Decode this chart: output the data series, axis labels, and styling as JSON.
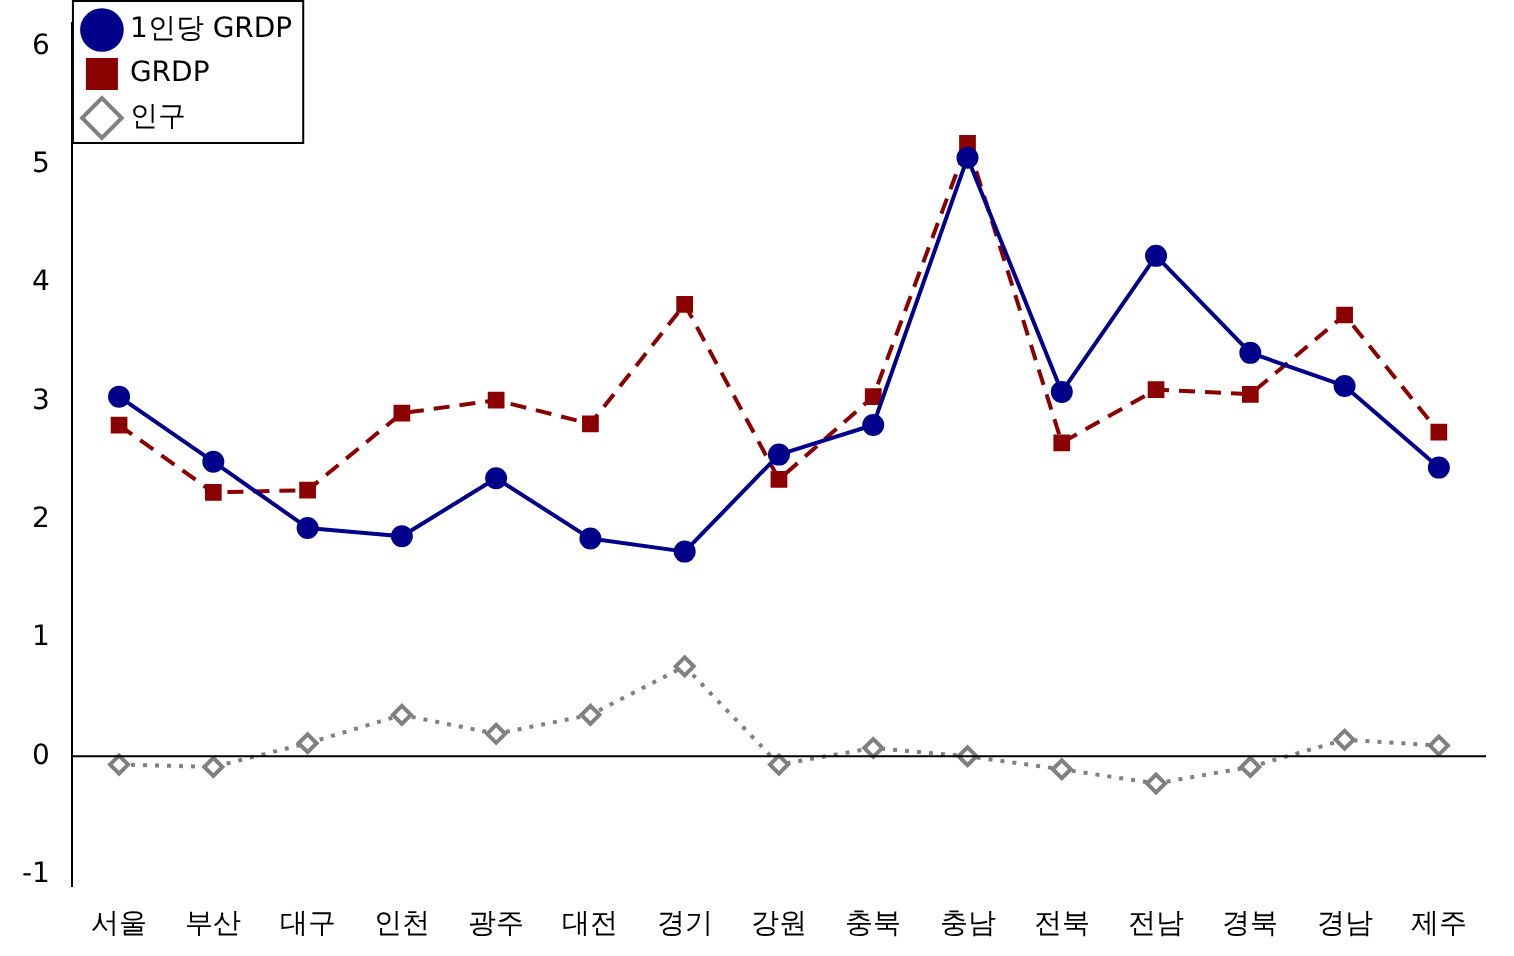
{
  "chart_data": {
    "type": "line",
    "categories": [
      "서울",
      "부산",
      "대구",
      "인천",
      "광주",
      "대전",
      "경기",
      "강원",
      "충북",
      "충남",
      "전북",
      "전남",
      "경북",
      "경남",
      "제주"
    ],
    "series": [
      {
        "name": "1인당 GRDP",
        "color": "#00008b",
        "marker": "circle",
        "line_style": "solid",
        "values": [
          3.04,
          2.49,
          1.93,
          1.86,
          2.35,
          1.84,
          1.73,
          2.55,
          2.8,
          5.06,
          3.08,
          4.23,
          3.41,
          3.13,
          2.44
        ]
      },
      {
        "name": "GRDP",
        "color": "#8b0000",
        "marker": "square",
        "line_style": "dashed",
        "values": [
          2.8,
          2.23,
          2.25,
          2.9,
          3.01,
          2.81,
          3.82,
          2.34,
          3.04,
          5.18,
          2.65,
          3.1,
          3.06,
          3.73,
          2.74
        ]
      },
      {
        "name": "인구",
        "color": "#808080",
        "marker": "diamond",
        "line_style": "dotted",
        "values": [
          -0.07,
          -0.09,
          0.11,
          0.35,
          0.19,
          0.35,
          0.76,
          -0.07,
          0.07,
          0,
          -0.11,
          -0.23,
          -0.09,
          0.14,
          0.09
        ]
      }
    ],
    "ylim": [
      -1.1,
      6.2
    ],
    "yticks": [
      -1,
      0,
      1,
      2,
      3,
      4,
      5,
      6
    ],
    "ref_lines": [
      {
        "axis": "y",
        "value": 0,
        "color": "#000000"
      }
    ],
    "grid": false,
    "legend": "top left"
  }
}
